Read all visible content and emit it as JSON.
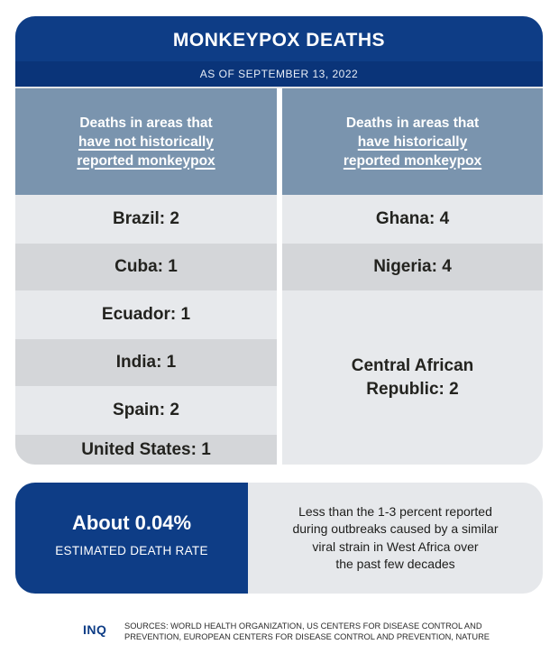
{
  "title": "MONKEYPOX DEATHS",
  "date": "AS OF SEPTEMBER 13, 2022",
  "left_column": {
    "header_line1": "Deaths in areas that",
    "header_line2": "have not historically",
    "header_line3": "reported monkeypox",
    "rows": [
      "Brazil: 2",
      "Cuba: 1",
      "Ecuador: 1",
      "India: 1",
      "Spain: 2",
      "United States: 1"
    ]
  },
  "right_column": {
    "header_line1": "Deaths in areas that",
    "header_line2": "have historically",
    "header_line3": "reported monkeypox",
    "rows": [
      "Ghana: 4",
      "Nigeria: 4"
    ],
    "car_line1": "Central African",
    "car_line2": "Republic: 2"
  },
  "rate": {
    "value": "About 0.04%",
    "label": "ESTIMATED DEATH RATE",
    "note_line1": "Less than the 1-3 percent reported",
    "note_line2": "during outbreaks caused by a similar",
    "note_line3": "viral strain in West Africa over",
    "note_line4": "the past few decades"
  },
  "footer": {
    "logo": "INQ",
    "sources_line1": "SOURCES: WORLD HEALTH ORGANIZATION, US CENTERS FOR DISEASE CONTROL AND",
    "sources_line2": "PREVENTION, EUROPEAN CENTERS FOR DISEASE CONTROL AND PREVENTION, NATURE"
  },
  "colors": {
    "navy": "#0e3d86",
    "header_blue": "#7a94ae",
    "row_light": "#e7e9ec",
    "row_dark": "#d4d6d9"
  }
}
